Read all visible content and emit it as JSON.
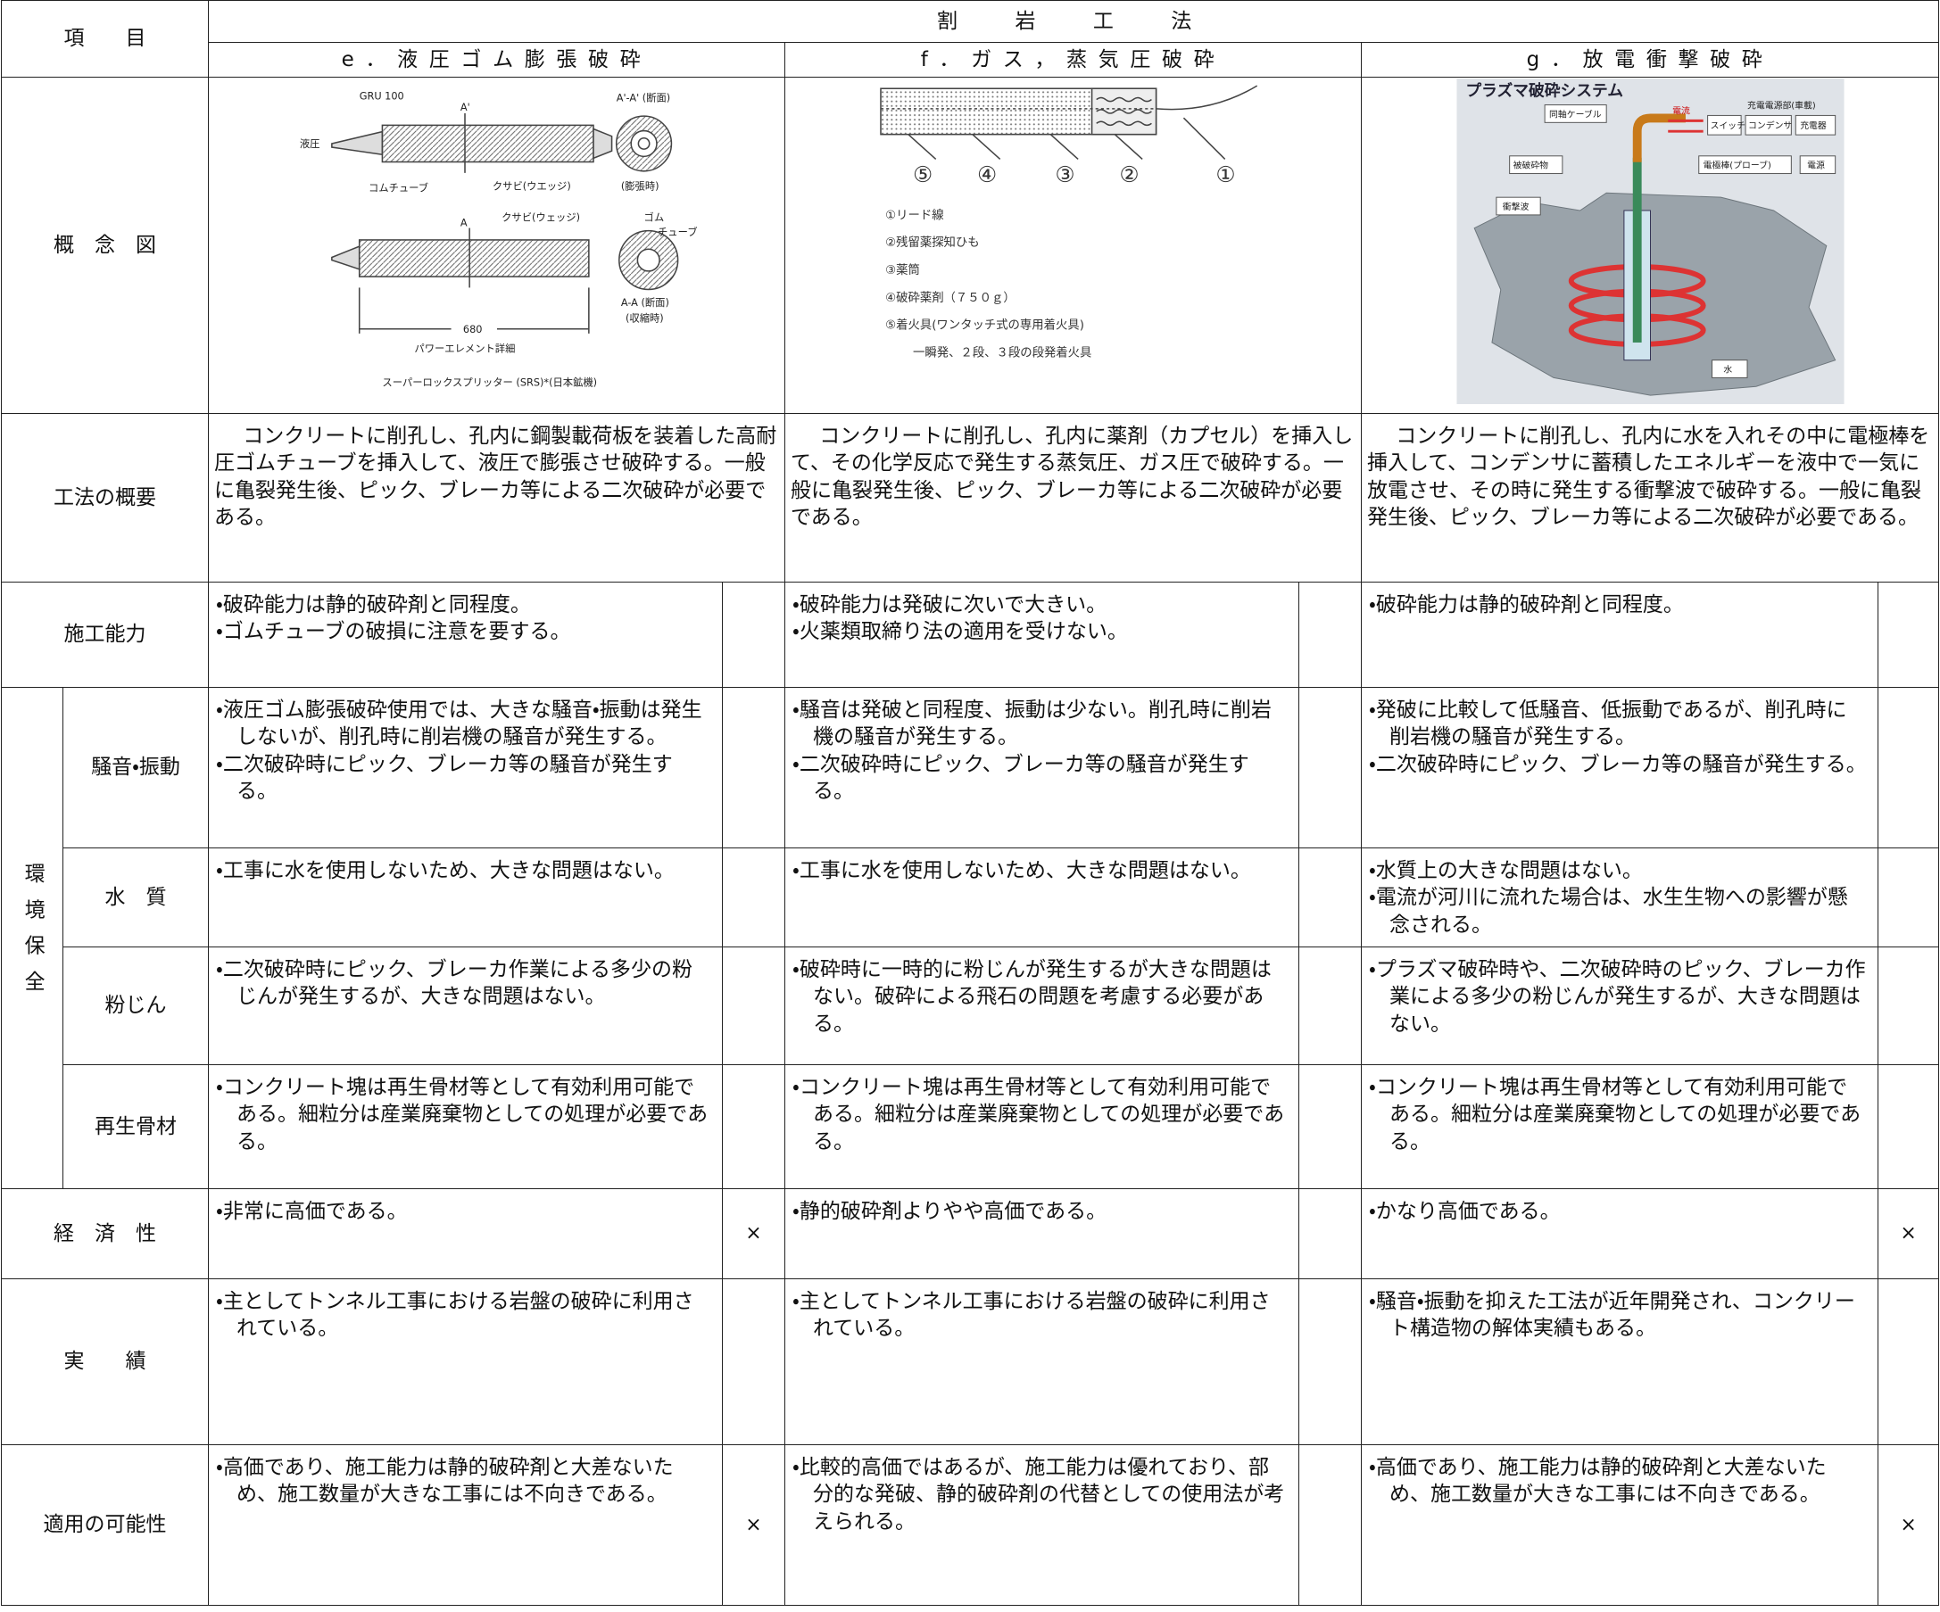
{
  "header": {
    "item_label": "項　　目",
    "method_group": "割　岩　工　法",
    "methods": [
      "e．液圧ゴム膨張破砕",
      "f．ガス，蒸気圧破砕",
      "g．放電衝撃破砕"
    ]
  },
  "concept": {
    "label": "概　念　図",
    "diagrams": [
      {
        "labels": [
          "GRU 100",
          "A'",
          "A'-A' (断面)",
          "液圧",
          "コムチューブ",
          "クサビ(ウエッジ)",
          "(膨張時)",
          "クサビ(ウェッジ)",
          "ゴム",
          "チューブ",
          "A",
          "A-A (断面)",
          "(収縮時)",
          "680",
          "パワーエレメント詳細",
          "スーパーロックスプリッター (SRS)*(日本鉱機)"
        ]
      },
      {
        "labels": [
          "⑤",
          "④",
          "③",
          "②",
          "①",
          "①リード線",
          "②残留薬探知ひも",
          "③薬筒",
          "④破砕薬剤（７５０ｇ）",
          "⑤着火具(ワンタッチ式の専用着火具)",
          "一瞬発、２段、３段の段発着火具"
        ]
      },
      {
        "labels": [
          "プラズマ破砕システム",
          "同軸ケーブル",
          "電流",
          "スイッチ",
          "コンデンサ",
          "充電器",
          "充電電源部(車載)",
          "被破砕物",
          "電極棒(プローブ)",
          "電源",
          "衝撃波",
          "水"
        ]
      }
    ]
  },
  "overview": {
    "label": "工法の概要",
    "cells": [
      "コンクリートに削孔し、孔内に鋼製載荷板を装着した高耐圧ゴムチューブを挿入して、液圧で膨張させ破砕する。一般に亀裂発生後、ピック、ブレーカ等による二次破砕が必要である。",
      "コンクリートに削孔し、孔内に薬剤（カプセル）を挿入して、その化学反応で発生する蒸気圧、ガス圧で破砕する。一般に亀裂発生後、ピック、ブレーカ等による二次破砕が必要である。",
      "コンクリートに削孔し、孔内に水を入れその中に電極棒を挿入して、コンデンサに蓄積したエネルギーを液中で一気に放電させ、その時に発生する衝撃波で破砕する。一般に亀裂発生後、ピック、ブレーカ等による二次破砕が必要である。"
    ]
  },
  "capability": {
    "label": "施工能力",
    "cells": [
      {
        "items": [
          "・破砕能力は静的破砕剤と同程度。",
          "・ゴムチューブの破損に注意を要する。"
        ]
      },
      {
        "items": [
          "・破砕能力は発破に次いで大きい。",
          "・火薬類取締り法の適用を受けない。"
        ]
      },
      {
        "items": [
          "・破砕能力は静的破砕剤と同程度。"
        ]
      }
    ]
  },
  "environment": {
    "label": "環境保全",
    "rows": [
      {
        "label": "騒音・振動",
        "cells": [
          {
            "items": [
              "・液圧ゴム膨張破砕使用では、大きな騒音・振動は発生しないが、削孔時に削岩機の騒音が発生する。",
              "・二次破砕時にピック、ブレーカ等の騒音が発生する。"
            ]
          },
          {
            "items": [
              "・騒音は発破と同程度、振動は少ない。削孔時に削岩機の騒音が発生する。",
              "・二次破砕時にピック、ブレーカ等の騒音が発生する。"
            ]
          },
          {
            "items": [
              "・発破に比較して低騒音、低振動であるが、削孔時に削岩機の騒音が発生する。",
              "・二次破砕時にピック、ブレーカ等の騒音が発生する。"
            ]
          }
        ]
      },
      {
        "label": "水　質",
        "cells": [
          {
            "items": [
              "・工事に水を使用しないため、大きな問題はない。"
            ]
          },
          {
            "items": [
              "・工事に水を使用しないため、大きな問題はない。"
            ]
          },
          {
            "items": [
              "・水質上の大きな問題はない。",
              "・電流が河川に流れた場合は、水生生物への影響が懸念される。"
            ]
          }
        ]
      },
      {
        "label": "粉じん",
        "cells": [
          {
            "items": [
              "・二次破砕時にピック、ブレーカ作業による多少の粉じんが発生するが、大きな問題はない。"
            ]
          },
          {
            "items": [
              "・破砕時に一時的に粉じんが発生するが大きな問題はない。破砕による飛石の問題を考慮する必要がある。"
            ]
          },
          {
            "items": [
              "・プラズマ破砕時や、二次破砕時のピック、ブレーカ作業による多少の粉じんが発生するが、大きな問題はない。"
            ]
          }
        ]
      },
      {
        "label": "再生骨材",
        "cells": [
          {
            "items": [
              "・コンクリート塊は再生骨材等として有効利用可能である。細粒分は産業廃棄物としての処理が必要である。"
            ]
          },
          {
            "items": [
              "・コンクリート塊は再生骨材等として有効利用可能である。細粒分は産業廃棄物としての処理が必要である。"
            ]
          },
          {
            "items": [
              "・コンクリート塊は再生骨材等として有効利用可能である。細粒分は産業廃棄物としての処理が必要である。"
            ]
          }
        ]
      }
    ]
  },
  "others": [
    {
      "label": "経　済　性",
      "cells": [
        {
          "items": [
            "・非常に高価である。"
          ],
          "mark": "×"
        },
        {
          "items": [
            "・静的破砕剤よりやや高価である。"
          ]
        },
        {
          "items": [
            "・かなり高価である。"
          ],
          "mark": "×"
        }
      ]
    },
    {
      "label": "実　　績",
      "cells": [
        {
          "items": [
            "・主としてトンネル工事における岩盤の破砕に利用されている。"
          ]
        },
        {
          "items": [
            "・主としてトンネル工事における岩盤の破砕に利用されている。"
          ]
        },
        {
          "items": [
            "・騒音・振動を抑えた工法が近年開発され、コンクリート構造物の解体実績もある。"
          ]
        }
      ]
    },
    {
      "label": "適用の可能性",
      "cells": [
        {
          "items": [
            "・高価であり、施工能力は静的破砕剤と大差ないため、施工数量が大きな工事には不向きである。"
          ],
          "mark": "×"
        },
        {
          "items": [
            "・比較的高価ではあるが、施工能力は優れており、部分的な発破、静的破砕剤の代替としての使用法が考えられる。"
          ]
        },
        {
          "items": [
            "・高価であり、施工能力は静的破砕剤と大差ないため、施工数量が大きな工事には不向きである。"
          ],
          "mark": "×"
        }
      ]
    }
  ]
}
